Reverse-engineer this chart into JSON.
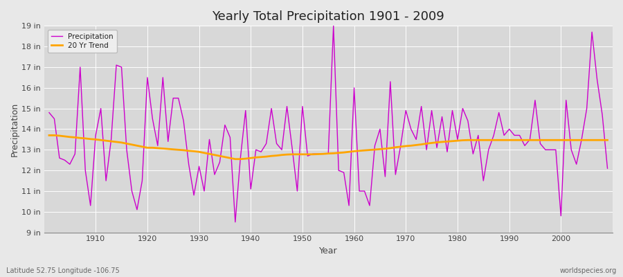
{
  "title": "Yearly Total Precipitation 1901 - 2009",
  "xlabel": "Year",
  "ylabel": "Precipitation",
  "footnote_left": "Latitude 52.75 Longitude -106.75",
  "footnote_right": "worldspecies.org",
  "legend_precipitation": "Precipitation",
  "legend_trend": "20 Yr Trend",
  "years": [
    1901,
    1902,
    1903,
    1904,
    1905,
    1906,
    1907,
    1908,
    1909,
    1910,
    1911,
    1912,
    1913,
    1914,
    1915,
    1916,
    1917,
    1918,
    1919,
    1920,
    1921,
    1922,
    1923,
    1924,
    1925,
    1926,
    1927,
    1928,
    1929,
    1930,
    1931,
    1932,
    1933,
    1934,
    1935,
    1936,
    1937,
    1938,
    1939,
    1940,
    1941,
    1942,
    1943,
    1944,
    1945,
    1946,
    1947,
    1948,
    1949,
    1950,
    1951,
    1952,
    1953,
    1954,
    1955,
    1956,
    1957,
    1958,
    1959,
    1960,
    1961,
    1962,
    1963,
    1964,
    1965,
    1966,
    1967,
    1968,
    1969,
    1970,
    1971,
    1972,
    1973,
    1974,
    1975,
    1976,
    1977,
    1978,
    1979,
    1980,
    1981,
    1982,
    1983,
    1984,
    1985,
    1986,
    1987,
    1988,
    1989,
    1990,
    1991,
    1992,
    1993,
    1994,
    1995,
    1996,
    1997,
    1998,
    1999,
    2000,
    2001,
    2002,
    2003,
    2004,
    2005,
    2006,
    2007,
    2008,
    2009
  ],
  "precip": [
    14.8,
    14.5,
    12.6,
    12.5,
    12.3,
    12.8,
    17.0,
    12.0,
    10.3,
    13.7,
    15.0,
    11.5,
    13.5,
    17.1,
    17.0,
    13.0,
    11.0,
    10.1,
    11.5,
    16.5,
    14.5,
    13.2,
    16.5,
    13.4,
    15.5,
    15.5,
    14.4,
    12.3,
    10.8,
    12.2,
    11.0,
    13.5,
    11.8,
    12.4,
    14.2,
    13.6,
    9.5,
    12.6,
    14.9,
    11.1,
    13.0,
    12.9,
    13.3,
    15.0,
    13.3,
    13.0,
    15.1,
    13.1,
    11.0,
    15.1,
    12.7,
    12.8,
    12.8,
    12.8,
    12.8,
    19.0,
    12.0,
    11.9,
    10.3,
    16.0,
    11.0,
    11.0,
    10.3,
    13.2,
    14.0,
    11.7,
    16.3,
    11.8,
    13.2,
    14.9,
    14.0,
    13.5,
    15.1,
    13.0,
    14.9,
    13.1,
    14.6,
    12.9,
    14.9,
    13.5,
    15.0,
    14.4,
    12.8,
    13.7,
    11.5,
    13.0,
    13.7,
    14.8,
    13.7,
    14.0,
    13.7,
    13.7,
    13.2,
    13.5,
    15.4,
    13.3,
    13.0,
    13.0,
    13.0,
    9.8,
    15.4,
    13.0,
    12.3,
    13.5,
    15.0,
    18.7,
    16.4,
    14.7,
    12.1
  ],
  "trend": [
    13.7,
    13.7,
    13.68,
    13.65,
    13.62,
    13.6,
    13.57,
    13.55,
    13.52,
    13.5,
    13.47,
    13.44,
    13.41,
    13.38,
    13.35,
    13.3,
    13.25,
    13.2,
    13.15,
    13.1,
    13.1,
    13.08,
    13.06,
    13.04,
    13.02,
    13.0,
    12.98,
    12.95,
    12.93,
    12.9,
    12.85,
    12.8,
    12.75,
    12.7,
    12.65,
    12.6,
    12.55,
    12.55,
    12.57,
    12.6,
    12.63,
    12.65,
    12.67,
    12.7,
    12.72,
    12.75,
    12.77,
    12.78,
    12.78,
    12.78,
    12.78,
    12.78,
    12.79,
    12.8,
    12.82,
    12.83,
    12.85,
    12.87,
    12.9,
    12.93,
    12.95,
    12.97,
    12.99,
    13.01,
    13.03,
    13.05,
    13.08,
    13.12,
    13.15,
    13.18,
    13.2,
    13.23,
    13.26,
    13.3,
    13.33,
    13.36,
    13.38,
    13.4,
    13.42,
    13.44,
    13.46,
    13.47,
    13.47,
    13.47,
    13.47,
    13.47,
    13.47,
    13.47,
    13.47,
    13.47,
    13.47,
    13.47,
    13.47,
    13.47,
    13.47,
    13.47,
    13.47,
    13.47,
    13.47,
    13.47,
    13.47,
    13.47,
    13.47,
    13.47,
    13.47,
    13.47,
    13.47,
    13.47,
    13.47
  ],
  "precip_color": "#CC00CC",
  "trend_color": "#FFA500",
  "bg_color": "#E8E8E8",
  "plot_bg_color": "#D8D8D8",
  "grid_color": "#FFFFFF",
  "ylim": [
    9,
    19
  ],
  "yticks": [
    9,
    10,
    11,
    12,
    13,
    14,
    15,
    16,
    17,
    18,
    19
  ],
  "ytick_labels": [
    "9 in",
    "10 in",
    "11 in",
    "12 in",
    "13 in",
    "14 in",
    "15 in",
    "16 in",
    "17 in",
    "18 in",
    "19 in"
  ],
  "xlim": [
    1900,
    2010
  ],
  "xticks": [
    1910,
    1920,
    1930,
    1940,
    1950,
    1960,
    1970,
    1980,
    1990,
    2000
  ]
}
